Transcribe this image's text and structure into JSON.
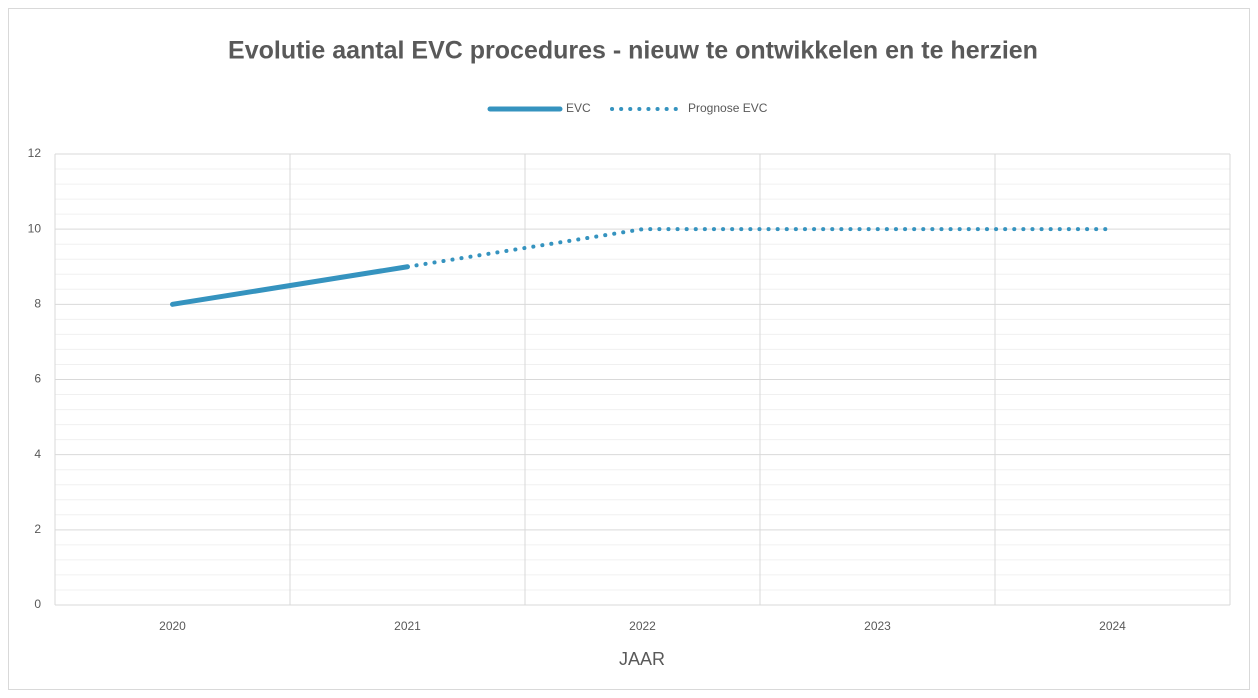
{
  "chart_data": {
    "type": "line",
    "title": "Evolutie aantal EVC procedures - nieuw te ontwikkelen en te herzien",
    "x_label": "JAAR",
    "categories": [
      "2020",
      "2021",
      "2022",
      "2023",
      "2024"
    ],
    "series": [
      {
        "name": "EVC",
        "color": "#3593bf",
        "style": "solid",
        "values": [
          8,
          9,
          null,
          null,
          null
        ]
      },
      {
        "name": "Prognose EVC",
        "color": "#3593bf",
        "style": "dotted",
        "values": [
          null,
          9,
          10,
          10,
          10
        ]
      }
    ],
    "ylim": [
      0,
      12
    ],
    "yticks": [
      0,
      2,
      4,
      6,
      8,
      10,
      12
    ],
    "grid": true,
    "minor_grid_per_major": 5,
    "legend": "top"
  }
}
